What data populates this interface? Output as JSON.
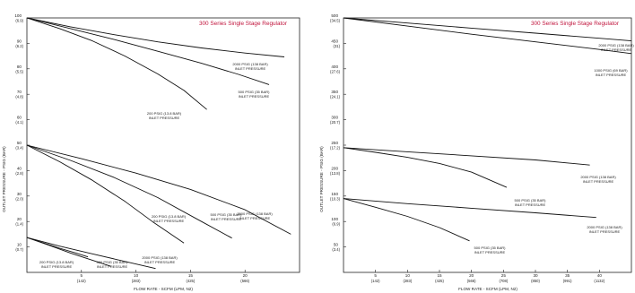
{
  "chart_data": [
    {
      "type": "line",
      "title": "300 Series Single Stage Regulator",
      "title_color": "#c0143c",
      "xlabel": "FLOW RATE - SCFM (LPM, N2)",
      "ylabel": "OUTLET PRESSURE - PSIG (BAR)",
      "xlim": [
        0,
        25
      ],
      "ylim": [
        0,
        100
      ],
      "grid": false,
      "xticks": [
        {
          "value": 5,
          "label": "5",
          "sub": "(142)"
        },
        {
          "value": 10,
          "label": "10",
          "sub": "(283)"
        },
        {
          "value": 15,
          "label": "15",
          "sub": "(425)"
        },
        {
          "value": 20,
          "label": "20",
          "sub": "(566)"
        }
      ],
      "yticks": [
        {
          "value": 100,
          "label": "100",
          "sub": "(6.9)"
        },
        {
          "value": 90,
          "label": "90",
          "sub": "(6.2)"
        },
        {
          "value": 80,
          "label": "80",
          "sub": "(5.5)"
        },
        {
          "value": 70,
          "label": "70",
          "sub": "(4.8)"
        },
        {
          "value": 60,
          "label": "60",
          "sub": "(4.1)"
        },
        {
          "value": 50,
          "label": "50",
          "sub": "(3.4)"
        },
        {
          "value": 40,
          "label": "40",
          "sub": "(2.8)"
        },
        {
          "value": 30,
          "label": "30",
          "sub": "(2.0)"
        },
        {
          "value": 20,
          "label": "20",
          "sub": "(1.4)"
        },
        {
          "value": 10,
          "label": "10",
          "sub": "(0.7)"
        }
      ],
      "series": [
        {
          "x": [
            0,
            4,
            8,
            12,
            16,
            20,
            23.6
          ],
          "y": [
            100,
            96.5,
            93.4,
            90.6,
            88.2,
            86.2,
            84.7
          ],
          "label": [
            "2000 PSIG (138 BAR)",
            "INLET PRESSURE"
          ]
        },
        {
          "x": [
            0,
            4,
            8,
            12,
            16,
            19.4,
            22.2
          ],
          "y": [
            100,
            95.8,
            91.5,
            86.9,
            82.2,
            77.8,
            73.8
          ],
          "label": [
            "500 PSIG (35 BAR)",
            "INLET PRESSURE"
          ]
        },
        {
          "x": [
            0,
            3,
            6,
            9,
            12,
            14.4,
            16.5
          ],
          "y": [
            100,
            95.8,
            91.0,
            85.0,
            78.0,
            71.5,
            64.0
          ],
          "label": [
            "200 PSIG (13.8 BAR)",
            "INLET PRESSURE"
          ]
        },
        {
          "x": [
            0,
            5,
            10,
            15,
            20,
            24.2
          ],
          "y": [
            50,
            44.7,
            39.0,
            32.6,
            24.6,
            15.0
          ],
          "label": [
            "2000 PSIG (138 BAR)",
            "INLET PRESSURE"
          ]
        },
        {
          "x": [
            0,
            4,
            8,
            12,
            16,
            18.8
          ],
          "y": [
            50,
            44.0,
            37.3,
            29.4,
            20.0,
            13.5
          ],
          "label": [
            "500 PSIG (35 BAR)",
            "INLET PRESSURE"
          ]
        },
        {
          "x": [
            0,
            3,
            6,
            9,
            11.5,
            14.4
          ],
          "y": [
            50,
            43.5,
            36.2,
            27.9,
            20.0,
            11.5
          ],
          "label": [
            "200 PSIG (13.8 BAR)",
            "INLET PRESSURE"
          ]
        },
        {
          "x": [
            0,
            3,
            6,
            9,
            11.8
          ],
          "y": [
            13.7,
            10.3,
            7.3,
            4.3,
            1.5
          ],
          "label": [
            "2000 PSIG (138 BAR)",
            "INLET PRESSURE"
          ]
        },
        {
          "x": [
            0,
            2,
            4,
            6,
            7.7
          ],
          "y": [
            13.7,
            10.7,
            7.6,
            4.8,
            2.4
          ],
          "label": [
            "500 PSIG (35 BAR)",
            "INLET PRESSURE"
          ]
        },
        {
          "x": [
            0,
            1.5,
            3,
            4.5,
            5.6
          ],
          "y": [
            13.7,
            11.6,
            9.5,
            7.6,
            6.1
          ],
          "label": [
            "200 PSIG (13.8 BAR)",
            "INLET PRESSURE"
          ]
        }
      ]
    },
    {
      "type": "line",
      "title": "300 Series Single Stage Regulator",
      "title_color": "#c0143c",
      "xlabel": "FLOW RATE - SCFM (LPM, N2)",
      "ylabel": "OUTLET PRESSURE - PSIG (BAR)",
      "xlim": [
        0,
        45
      ],
      "ylim": [
        0,
        500
      ],
      "grid": false,
      "xticks": [
        {
          "value": 5,
          "label": "5",
          "sub": "(142)"
        },
        {
          "value": 10,
          "label": "10",
          "sub": "(283)"
        },
        {
          "value": 15,
          "label": "15",
          "sub": "(425)"
        },
        {
          "value": 20,
          "label": "20",
          "sub": "(566)"
        },
        {
          "value": 25,
          "label": "25",
          "sub": "(708)"
        },
        {
          "value": 30,
          "label": "30",
          "sub": "(850)"
        },
        {
          "value": 35,
          "label": "35",
          "sub": "(991)"
        },
        {
          "value": 40,
          "label": "40",
          "sub": "(1132)"
        }
      ],
      "yticks": [
        {
          "value": 500,
          "label": "500",
          "sub": "(34.5)"
        },
        {
          "value": 450,
          "label": "450",
          "sub": "(31)"
        },
        {
          "value": 400,
          "label": "400",
          "sub": "(27.6)"
        },
        {
          "value": 350,
          "label": "350",
          "sub": "(24.1)"
        },
        {
          "value": 300,
          "label": "300",
          "sub": "(20.7)"
        },
        {
          "value": 250,
          "label": "250",
          "sub": "(17.2)"
        },
        {
          "value": 200,
          "label": "200",
          "sub": "(13.8)"
        },
        {
          "value": 150,
          "label": "150",
          "sub": "(10.3)"
        },
        {
          "value": 100,
          "label": "100",
          "sub": "(6.9)"
        },
        {
          "value": 50,
          "label": "50",
          "sub": "(3.4)"
        }
      ],
      "series": [
        {
          "x": [
            0,
            10,
            20,
            30,
            40,
            45
          ],
          "y": [
            500,
            490,
            480,
            470,
            460,
            455
          ],
          "label": [
            "2000 PSIG (138 BAR)",
            "INLET PRESSURE"
          ]
        },
        {
          "x": [
            0,
            10,
            20,
            30,
            40,
            45
          ],
          "y": [
            500,
            484,
            468,
            453,
            438,
            430
          ],
          "label": [
            "1000 PSIG (69 BAR)",
            "INLET PRESSURE"
          ]
        },
        {
          "x": [
            0,
            10,
            20,
            30,
            38.5
          ],
          "y": [
            245,
            237,
            229,
            221,
            211
          ],
          "label": [
            "2000 PSIG (138 BAR)",
            "INLET PRESSURE"
          ]
        },
        {
          "x": [
            0,
            5,
            10,
            15,
            20,
            25.5
          ],
          "y": [
            245,
            236,
            226,
            214,
            197,
            167
          ],
          "label": [
            "500 PSIG (35 BAR)",
            "INLET PRESSURE"
          ]
        },
        {
          "x": [
            0,
            10,
            20,
            30,
            39.5
          ],
          "y": [
            145,
            135,
            126,
            117,
            108
          ],
          "label": [
            "2000 PSIG (138 BAR)",
            "INLET PRESSURE"
          ]
        },
        {
          "x": [
            0,
            5,
            10,
            15,
            19.7
          ],
          "y": [
            145,
            128,
            110,
            88,
            62
          ],
          "label": [
            "500 PSIG (35 BAR)",
            "INLET PRESSURE"
          ]
        }
      ]
    }
  ]
}
